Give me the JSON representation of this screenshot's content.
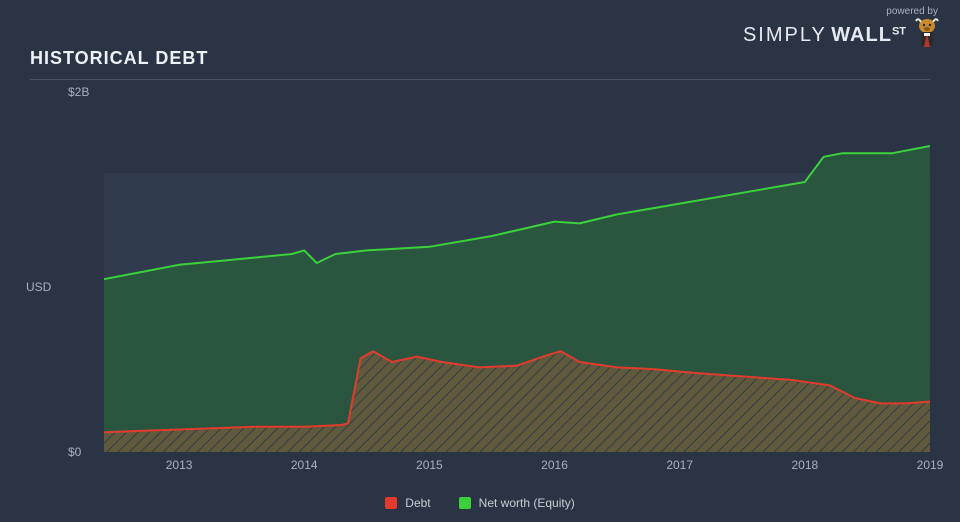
{
  "branding": {
    "powered_by": "powered by",
    "name_light": "SIMPLY",
    "name_bold": "WALL",
    "name_suffix": "ST"
  },
  "title": "HISTORICAL DEBT",
  "chart": {
    "type": "area",
    "background_color": "#2a3444",
    "plot_band_color": "#303b4d",
    "grid_color": "#4a556a",
    "label_color": "#aab0bc",
    "label_fontsize": 12,
    "title_fontsize": 18,
    "ylabel": "USD",
    "ylim": [
      0,
      2
    ],
    "yticks": [
      {
        "value": 0,
        "label": "$0"
      },
      {
        "value": 2,
        "label": "$2B"
      }
    ],
    "xlim": [
      2012.4,
      2019.0
    ],
    "xticks": [
      2013,
      2014,
      2015,
      2016,
      2017,
      2018,
      2019
    ],
    "series": [
      {
        "name": "Net worth (Equity)",
        "stroke": "#3bd13b",
        "fill": "#295a3d",
        "fill_opacity": 0.85,
        "line_width": 2,
        "points": [
          [
            2012.4,
            0.96
          ],
          [
            2012.7,
            1.0
          ],
          [
            2013.0,
            1.04
          ],
          [
            2013.3,
            1.06
          ],
          [
            2013.6,
            1.08
          ],
          [
            2013.9,
            1.1
          ],
          [
            2014.0,
            1.12
          ],
          [
            2014.1,
            1.05
          ],
          [
            2014.25,
            1.1
          ],
          [
            2014.5,
            1.12
          ],
          [
            2015.0,
            1.14
          ],
          [
            2015.5,
            1.2
          ],
          [
            2016.0,
            1.28
          ],
          [
            2016.2,
            1.27
          ],
          [
            2016.5,
            1.32
          ],
          [
            2017.0,
            1.38
          ],
          [
            2017.5,
            1.44
          ],
          [
            2018.0,
            1.5
          ],
          [
            2018.15,
            1.64
          ],
          [
            2018.3,
            1.66
          ],
          [
            2018.7,
            1.66
          ],
          [
            2019.0,
            1.7
          ]
        ]
      },
      {
        "name": "Debt",
        "stroke": "#e23b2e",
        "fill": "#6a5a3a",
        "fill_opacity": 0.85,
        "fill_hatch": true,
        "hatch_color": "#2f3a4a",
        "line_width": 2,
        "points": [
          [
            2012.4,
            0.11
          ],
          [
            2012.8,
            0.12
          ],
          [
            2013.2,
            0.13
          ],
          [
            2013.6,
            0.14
          ],
          [
            2014.0,
            0.14
          ],
          [
            2014.3,
            0.15
          ],
          [
            2014.35,
            0.16
          ],
          [
            2014.45,
            0.52
          ],
          [
            2014.55,
            0.56
          ],
          [
            2014.7,
            0.5
          ],
          [
            2014.9,
            0.53
          ],
          [
            2015.1,
            0.5
          ],
          [
            2015.4,
            0.47
          ],
          [
            2015.7,
            0.48
          ],
          [
            2015.95,
            0.54
          ],
          [
            2016.05,
            0.56
          ],
          [
            2016.2,
            0.5
          ],
          [
            2016.5,
            0.47
          ],
          [
            2016.8,
            0.46
          ],
          [
            2017.1,
            0.44
          ],
          [
            2017.5,
            0.42
          ],
          [
            2017.9,
            0.4
          ],
          [
            2018.2,
            0.37
          ],
          [
            2018.4,
            0.3
          ],
          [
            2018.6,
            0.27
          ],
          [
            2018.8,
            0.27
          ],
          [
            2019.0,
            0.28
          ]
        ]
      }
    ],
    "legend": {
      "position": "bottom-center",
      "items": [
        {
          "label": "Debt",
          "color": "#e23b2e"
        },
        {
          "label": "Net worth (Equity)",
          "color": "#3bd13b"
        }
      ]
    }
  }
}
